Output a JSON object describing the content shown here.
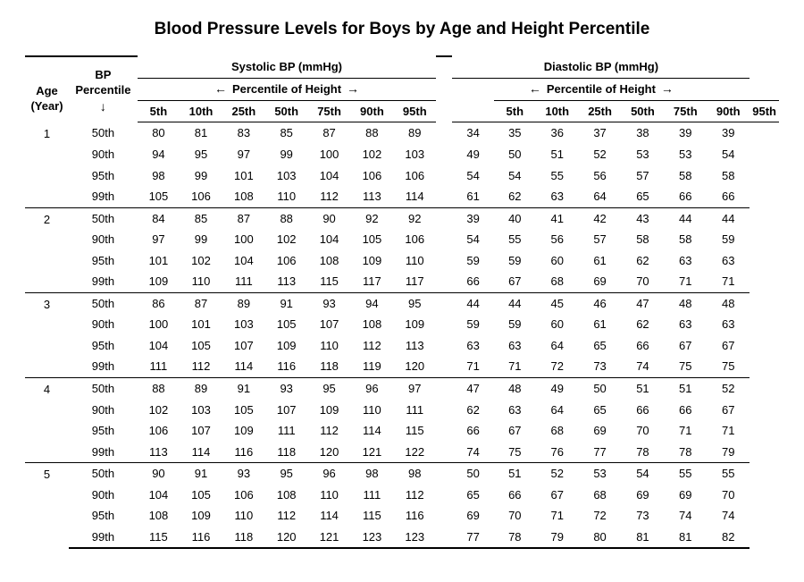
{
  "title": "Blood Pressure Levels for Boys by Age and Height Percentile",
  "header": {
    "age_label_top": "Age",
    "age_label_bot": "(Year)",
    "bp_percentile_top": "BP",
    "bp_percentile_bot": "Percentile",
    "systolic_label": "Systolic BP (mmHg)",
    "diastolic_label": "Diastolic BP (mmHg)",
    "percentile_of_height": "Percentile of Height",
    "height_pcts": [
      "5th",
      "10th",
      "25th",
      "50th",
      "75th",
      "90th",
      "95th"
    ]
  },
  "table": {
    "type": "table",
    "background_color": "#ffffff",
    "rule_color": "#000000",
    "font_family": "Arial",
    "body_fontsize": 13,
    "title_fontsize": 19,
    "column_count": 17,
    "age_groups": [
      {
        "age": "1",
        "rows": [
          {
            "pct": "50th",
            "sys": [
              80,
              81,
              83,
              85,
              87,
              88,
              89
            ],
            "dia": [
              34,
              35,
              36,
              37,
              38,
              39,
              39
            ]
          },
          {
            "pct": "90th",
            "sys": [
              94,
              95,
              97,
              99,
              100,
              102,
              103
            ],
            "dia": [
              49,
              50,
              51,
              52,
              53,
              53,
              54
            ]
          },
          {
            "pct": "95th",
            "sys": [
              98,
              99,
              101,
              103,
              104,
              106,
              106
            ],
            "dia": [
              54,
              54,
              55,
              56,
              57,
              58,
              58
            ]
          },
          {
            "pct": "99th",
            "sys": [
              105,
              106,
              108,
              110,
              112,
              113,
              114
            ],
            "dia": [
              61,
              62,
              63,
              64,
              65,
              66,
              66
            ]
          }
        ]
      },
      {
        "age": "2",
        "rows": [
          {
            "pct": "50th",
            "sys": [
              84,
              85,
              87,
              88,
              90,
              92,
              92
            ],
            "dia": [
              39,
              40,
              41,
              42,
              43,
              44,
              44
            ]
          },
          {
            "pct": "90th",
            "sys": [
              97,
              99,
              100,
              102,
              104,
              105,
              106
            ],
            "dia": [
              54,
              55,
              56,
              57,
              58,
              58,
              59
            ]
          },
          {
            "pct": "95th",
            "sys": [
              101,
              102,
              104,
              106,
              108,
              109,
              110
            ],
            "dia": [
              59,
              59,
              60,
              61,
              62,
              63,
              63
            ]
          },
          {
            "pct": "99th",
            "sys": [
              109,
              110,
              111,
              113,
              115,
              117,
              117
            ],
            "dia": [
              66,
              67,
              68,
              69,
              70,
              71,
              71
            ]
          }
        ]
      },
      {
        "age": "3",
        "rows": [
          {
            "pct": "50th",
            "sys": [
              86,
              87,
              89,
              91,
              93,
              94,
              95
            ],
            "dia": [
              44,
              44,
              45,
              46,
              47,
              48,
              48
            ]
          },
          {
            "pct": "90th",
            "sys": [
              100,
              101,
              103,
              105,
              107,
              108,
              109
            ],
            "dia": [
              59,
              59,
              60,
              61,
              62,
              63,
              63
            ]
          },
          {
            "pct": "95th",
            "sys": [
              104,
              105,
              107,
              109,
              110,
              112,
              113
            ],
            "dia": [
              63,
              63,
              64,
              65,
              66,
              67,
              67
            ]
          },
          {
            "pct": "99th",
            "sys": [
              111,
              112,
              114,
              116,
              118,
              119,
              120
            ],
            "dia": [
              71,
              71,
              72,
              73,
              74,
              75,
              75
            ]
          }
        ]
      },
      {
        "age": "4",
        "rows": [
          {
            "pct": "50th",
            "sys": [
              88,
              89,
              91,
              93,
              95,
              96,
              97
            ],
            "dia": [
              47,
              48,
              49,
              50,
              51,
              51,
              52
            ]
          },
          {
            "pct": "90th",
            "sys": [
              102,
              103,
              105,
              107,
              109,
              110,
              111
            ],
            "dia": [
              62,
              63,
              64,
              65,
              66,
              66,
              67
            ]
          },
          {
            "pct": "95th",
            "sys": [
              106,
              107,
              109,
              111,
              112,
              114,
              115
            ],
            "dia": [
              66,
              67,
              68,
              69,
              70,
              71,
              71
            ]
          },
          {
            "pct": "99th",
            "sys": [
              113,
              114,
              116,
              118,
              120,
              121,
              122
            ],
            "dia": [
              74,
              75,
              76,
              77,
              78,
              78,
              79
            ]
          }
        ]
      },
      {
        "age": "5",
        "rows": [
          {
            "pct": "50th",
            "sys": [
              90,
              91,
              93,
              95,
              96,
              98,
              98
            ],
            "dia": [
              50,
              51,
              52,
              53,
              54,
              55,
              55
            ]
          },
          {
            "pct": "90th",
            "sys": [
              104,
              105,
              106,
              108,
              110,
              111,
              112
            ],
            "dia": [
              65,
              66,
              67,
              68,
              69,
              69,
              70
            ]
          },
          {
            "pct": "95th",
            "sys": [
              108,
              109,
              110,
              112,
              114,
              115,
              116
            ],
            "dia": [
              69,
              70,
              71,
              72,
              73,
              74,
              74
            ]
          },
          {
            "pct": "99th",
            "sys": [
              115,
              116,
              118,
              120,
              121,
              123,
              123
            ],
            "dia": [
              77,
              78,
              79,
              80,
              81,
              81,
              82
            ]
          }
        ]
      }
    ]
  }
}
